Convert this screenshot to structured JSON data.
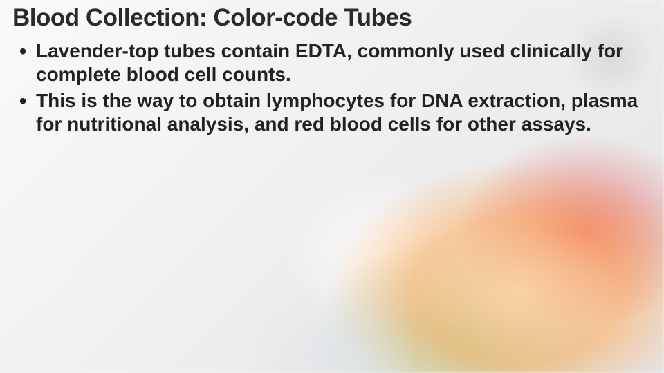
{
  "slide": {
    "title": "Blood Collection: Color-code Tubes",
    "title_fontsize": 35,
    "title_color": "#2a2a2a",
    "bullets": [
      "Lavender-top tubes contain EDTA, commonly used clinically for complete blood cell counts.",
      "This is the way to obtain lymphocytes for DNA extraction, plasma for nutritional analysis, and red blood cells for other assays."
    ],
    "bullet_fontsize": 28,
    "bullet_color": "#222222",
    "bullet_weight": 700,
    "background_color": "#f5f5f5",
    "accent_colors": [
      "#ffaa5a",
      "#e62828",
      "#78c878",
      "#ffffff"
    ]
  }
}
